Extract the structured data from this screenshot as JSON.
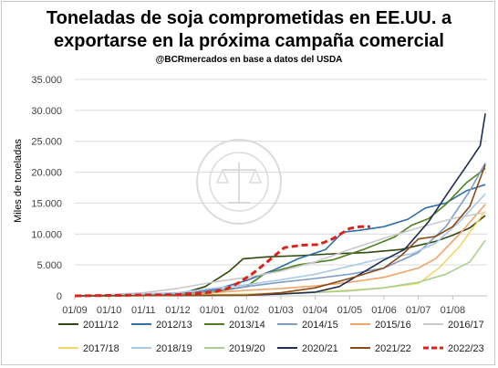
{
  "chart_data": {
    "type": "line",
    "title": "Toneladas de soja comprometidas en EE.UU. a exportarse en la próxima campaña comercial",
    "subtitle": "@BCRmercados  en base a datos del USDA",
    "ylabel": "Miles de toneladas",
    "xlabel": "",
    "ylim": [
      0,
      35000
    ],
    "yticks": [
      "0",
      "5.000",
      "10.000",
      "15.000",
      "20.000",
      "25.000",
      "30.000",
      "35.000"
    ],
    "xticks": [
      "01/09",
      "01/10",
      "01/11",
      "01/12",
      "01/01",
      "01/02",
      "01/03",
      "01/04",
      "01/05",
      "01/06",
      "01/07",
      "01/08"
    ],
    "x_unit": "meses desde 01/09",
    "grid": "horizontal",
    "legend_position": "bottom",
    "watermark": "BOLSA DE COMERCIO DE ROSARIO",
    "series": [
      {
        "name": "2011/12",
        "color": "#2e4a0c",
        "dashed": false,
        "points": [
          [
            0,
            0
          ],
          [
            3,
            200
          ],
          [
            3.8,
            1500
          ],
          [
            4.5,
            4000
          ],
          [
            4.9,
            6000
          ],
          [
            5.6,
            6300
          ],
          [
            6.5,
            6500
          ],
          [
            7.5,
            6800
          ],
          [
            8.5,
            7000
          ],
          [
            9.5,
            7500
          ],
          [
            10.5,
            8800
          ],
          [
            11,
            9800
          ],
          [
            11.5,
            11000
          ],
          [
            11.95,
            13000
          ]
        ]
      },
      {
        "name": "2012/13",
        "color": "#2e6fa7",
        "dashed": false,
        "points": [
          [
            0,
            0
          ],
          [
            3,
            100
          ],
          [
            4.2,
            1200
          ],
          [
            5,
            2500
          ],
          [
            5.8,
            4200
          ],
          [
            6.5,
            6000
          ],
          [
            7.3,
            7500
          ],
          [
            7.8,
            10300
          ],
          [
            8.3,
            10600
          ],
          [
            9,
            11200
          ],
          [
            9.7,
            12400
          ],
          [
            10.2,
            14200
          ],
          [
            10.8,
            15000
          ],
          [
            11.4,
            17000
          ],
          [
            11.95,
            18000
          ]
        ]
      },
      {
        "name": "2013/14",
        "color": "#4f7f1f",
        "dashed": false,
        "points": [
          [
            0,
            0
          ],
          [
            3,
            100
          ],
          [
            4,
            600
          ],
          [
            5,
            1500
          ],
          [
            5.5,
            3500
          ],
          [
            6.5,
            5000
          ],
          [
            7.5,
            5800
          ],
          [
            8.4,
            7500
          ],
          [
            9.3,
            9500
          ],
          [
            9.8,
            11400
          ],
          [
            10.3,
            12500
          ],
          [
            10.8,
            14800
          ],
          [
            11.4,
            18300
          ],
          [
            11.95,
            20600
          ]
        ]
      },
      {
        "name": "2014/15",
        "color": "#7f9cc5",
        "dashed": false,
        "points": [
          [
            0,
            0
          ],
          [
            3,
            300
          ],
          [
            4,
            800
          ],
          [
            5,
            1500
          ],
          [
            6,
            2200
          ],
          [
            7,
            2800
          ],
          [
            8,
            3500
          ],
          [
            9,
            4500
          ],
          [
            10,
            7000
          ],
          [
            10.8,
            11200
          ],
          [
            11.5,
            17000
          ],
          [
            11.95,
            21500
          ]
        ]
      },
      {
        "name": "2015/16",
        "color": "#f0a46a",
        "dashed": false,
        "points": [
          [
            0,
            0
          ],
          [
            3,
            100
          ],
          [
            4,
            500
          ],
          [
            5,
            900
          ],
          [
            6,
            1200
          ],
          [
            7,
            1600
          ],
          [
            8,
            2200
          ],
          [
            9,
            3000
          ],
          [
            10,
            4500
          ],
          [
            10.5,
            6000
          ],
          [
            11.2,
            10000
          ],
          [
            11.95,
            14800
          ]
        ]
      },
      {
        "name": "2016/17",
        "color": "#c8c8c8",
        "dashed": false,
        "points": [
          [
            0,
            0
          ],
          [
            1,
            200
          ],
          [
            2,
            500
          ],
          [
            3,
            1200
          ],
          [
            4,
            2200
          ],
          [
            5,
            3000
          ],
          [
            6,
            4000
          ],
          [
            7,
            5500
          ],
          [
            8,
            7500
          ],
          [
            9,
            9300
          ],
          [
            10,
            11000
          ],
          [
            11,
            12500
          ],
          [
            11.95,
            13500
          ]
        ]
      },
      {
        "name": "2017/18",
        "color": "#f5d569",
        "dashed": false,
        "points": [
          [
            0,
            0
          ],
          [
            3,
            100
          ],
          [
            5,
            300
          ],
          [
            7,
            600
          ],
          [
            8,
            900
          ],
          [
            9,
            1300
          ],
          [
            10,
            2000
          ],
          [
            10.6,
            4500
          ],
          [
            11.2,
            8000
          ],
          [
            11.95,
            13700
          ]
        ]
      },
      {
        "name": "2018/19",
        "color": "#a9c9ea",
        "dashed": false,
        "points": [
          [
            0,
            0
          ],
          [
            3,
            500
          ],
          [
            4,
            1200
          ],
          [
            5,
            1800
          ],
          [
            6,
            2600
          ],
          [
            7,
            3500
          ],
          [
            8,
            4800
          ],
          [
            8.9,
            6000
          ],
          [
            9.8,
            6800
          ],
          [
            10.5,
            8500
          ],
          [
            11.2,
            12000
          ],
          [
            11.95,
            16500
          ]
        ]
      },
      {
        "name": "2019/20",
        "color": "#a8d08d",
        "dashed": false,
        "points": [
          [
            0,
            0
          ],
          [
            4,
            100
          ],
          [
            6,
            300
          ],
          [
            8,
            800
          ],
          [
            9,
            1300
          ],
          [
            10,
            2200
          ],
          [
            10.8,
            3500
          ],
          [
            11.5,
            5500
          ],
          [
            11.95,
            9000
          ]
        ]
      },
      {
        "name": "2020/21",
        "color": "#1f2d52",
        "dashed": false,
        "points": [
          [
            0,
            0
          ],
          [
            5,
            100
          ],
          [
            6,
            300
          ],
          [
            7,
            600
          ],
          [
            7.7,
            1500
          ],
          [
            8.3,
            3500
          ],
          [
            9,
            5800
          ],
          [
            9.6,
            7500
          ],
          [
            10.3,
            12000
          ],
          [
            10.9,
            17000
          ],
          [
            11.4,
            21000
          ],
          [
            11.8,
            24300
          ],
          [
            11.95,
            29500
          ]
        ]
      },
      {
        "name": "2021/22",
        "color": "#8a4a16",
        "dashed": false,
        "points": [
          [
            0,
            0
          ],
          [
            5,
            100
          ],
          [
            6,
            500
          ],
          [
            7,
            1300
          ],
          [
            8,
            2800
          ],
          [
            9,
            4500
          ],
          [
            9.5,
            6500
          ],
          [
            10,
            9200
          ],
          [
            10.5,
            9600
          ],
          [
            11,
            11200
          ],
          [
            11.5,
            14500
          ],
          [
            11.95,
            21200
          ]
        ]
      },
      {
        "name": "2022/23",
        "color": "#d9241d",
        "dashed": true,
        "points": [
          [
            0,
            0
          ],
          [
            3,
            200
          ],
          [
            4,
            600
          ],
          [
            4.4,
            1100
          ],
          [
            4.8,
            2200
          ],
          [
            5.2,
            3700
          ],
          [
            5.6,
            5500
          ],
          [
            6.1,
            7800
          ],
          [
            6.6,
            8200
          ],
          [
            7.1,
            8300
          ],
          [
            7.5,
            9200
          ],
          [
            8,
            10900
          ],
          [
            8.3,
            11200
          ],
          [
            8.6,
            11200
          ]
        ]
      }
    ]
  }
}
